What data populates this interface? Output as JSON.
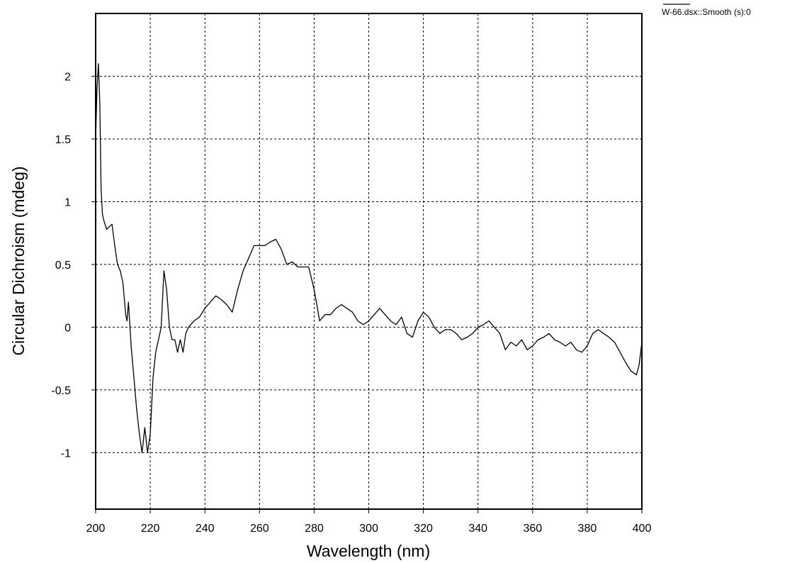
{
  "chart_data": {
    "type": "line",
    "xlabel": "Wavelength (nm)",
    "ylabel": "Circular Dichroism (mdeg)",
    "xlim": [
      200,
      400
    ],
    "ylim": [
      -1.45,
      2.5
    ],
    "xticks": [
      200,
      220,
      240,
      260,
      280,
      300,
      320,
      340,
      360,
      380,
      400
    ],
    "yticks": [
      -1,
      -0.5,
      0,
      0.5,
      1,
      1.5,
      2
    ],
    "grid": true,
    "legend_position": "top-right",
    "series": [
      {
        "name": "W-66.dsx::Smooth (s):0",
        "color": "#000000",
        "x": [
          200,
          200.5,
          201,
          201.5,
          202,
          202.5,
          203,
          204,
          205,
          206,
          207,
          208,
          209,
          210,
          211,
          211.5,
          212,
          213,
          214,
          215,
          216,
          217,
          218,
          219,
          220,
          221,
          222,
          223,
          224,
          225,
          226,
          227,
          228,
          229,
          230,
          231,
          232,
          233,
          234,
          236,
          238,
          240,
          242,
          244,
          246,
          248,
          250,
          252,
          254,
          256,
          258,
          260,
          262,
          264,
          266,
          268,
          270,
          272,
          274,
          276,
          278,
          280,
          282,
          284,
          286,
          288,
          290,
          292,
          294,
          296,
          298,
          300,
          302,
          304,
          306,
          308,
          310,
          312,
          314,
          316,
          318,
          320,
          322,
          324,
          326,
          328,
          330,
          332,
          334,
          336,
          338,
          340,
          342,
          344,
          346,
          348,
          350,
          352,
          354,
          356,
          358,
          360,
          362,
          364,
          366,
          368,
          370,
          372,
          374,
          376,
          378,
          380,
          382,
          384,
          386,
          388,
          390,
          392,
          394,
          396,
          398,
          399,
          400
        ],
        "values": [
          1.5,
          1.9,
          2.1,
          1.8,
          1.1,
          0.9,
          0.85,
          0.78,
          0.8,
          0.82,
          0.65,
          0.5,
          0.45,
          0.35,
          0.1,
          0.05,
          0.2,
          -0.15,
          -0.4,
          -0.65,
          -0.85,
          -1.0,
          -0.8,
          -1.0,
          -0.85,
          -0.4,
          -0.2,
          -0.1,
          0.0,
          0.45,
          0.3,
          0.0,
          -0.1,
          -0.1,
          -0.2,
          -0.1,
          -0.2,
          -0.05,
          0.0,
          0.05,
          0.08,
          0.15,
          0.2,
          0.25,
          0.22,
          0.18,
          0.12,
          0.3,
          0.45,
          0.55,
          0.65,
          0.65,
          0.65,
          0.68,
          0.7,
          0.62,
          0.5,
          0.52,
          0.48,
          0.48,
          0.48,
          0.3,
          0.05,
          0.1,
          0.1,
          0.15,
          0.18,
          0.15,
          0.12,
          0.05,
          0.02,
          0.05,
          0.1,
          0.15,
          0.1,
          0.05,
          0.02,
          0.08,
          -0.05,
          -0.08,
          0.05,
          0.12,
          0.08,
          0.0,
          -0.05,
          -0.02,
          -0.02,
          -0.05,
          -0.1,
          -0.08,
          -0.05,
          0.0,
          0.02,
          0.05,
          0.0,
          -0.05,
          -0.18,
          -0.12,
          -0.15,
          -0.1,
          -0.18,
          -0.15,
          -0.1,
          -0.08,
          -0.05,
          -0.1,
          -0.12,
          -0.15,
          -0.12,
          -0.18,
          -0.2,
          -0.15,
          -0.05,
          -0.02,
          -0.05,
          -0.08,
          -0.12,
          -0.2,
          -0.28,
          -0.35,
          -0.38,
          -0.3,
          -0.12
        ]
      }
    ]
  }
}
